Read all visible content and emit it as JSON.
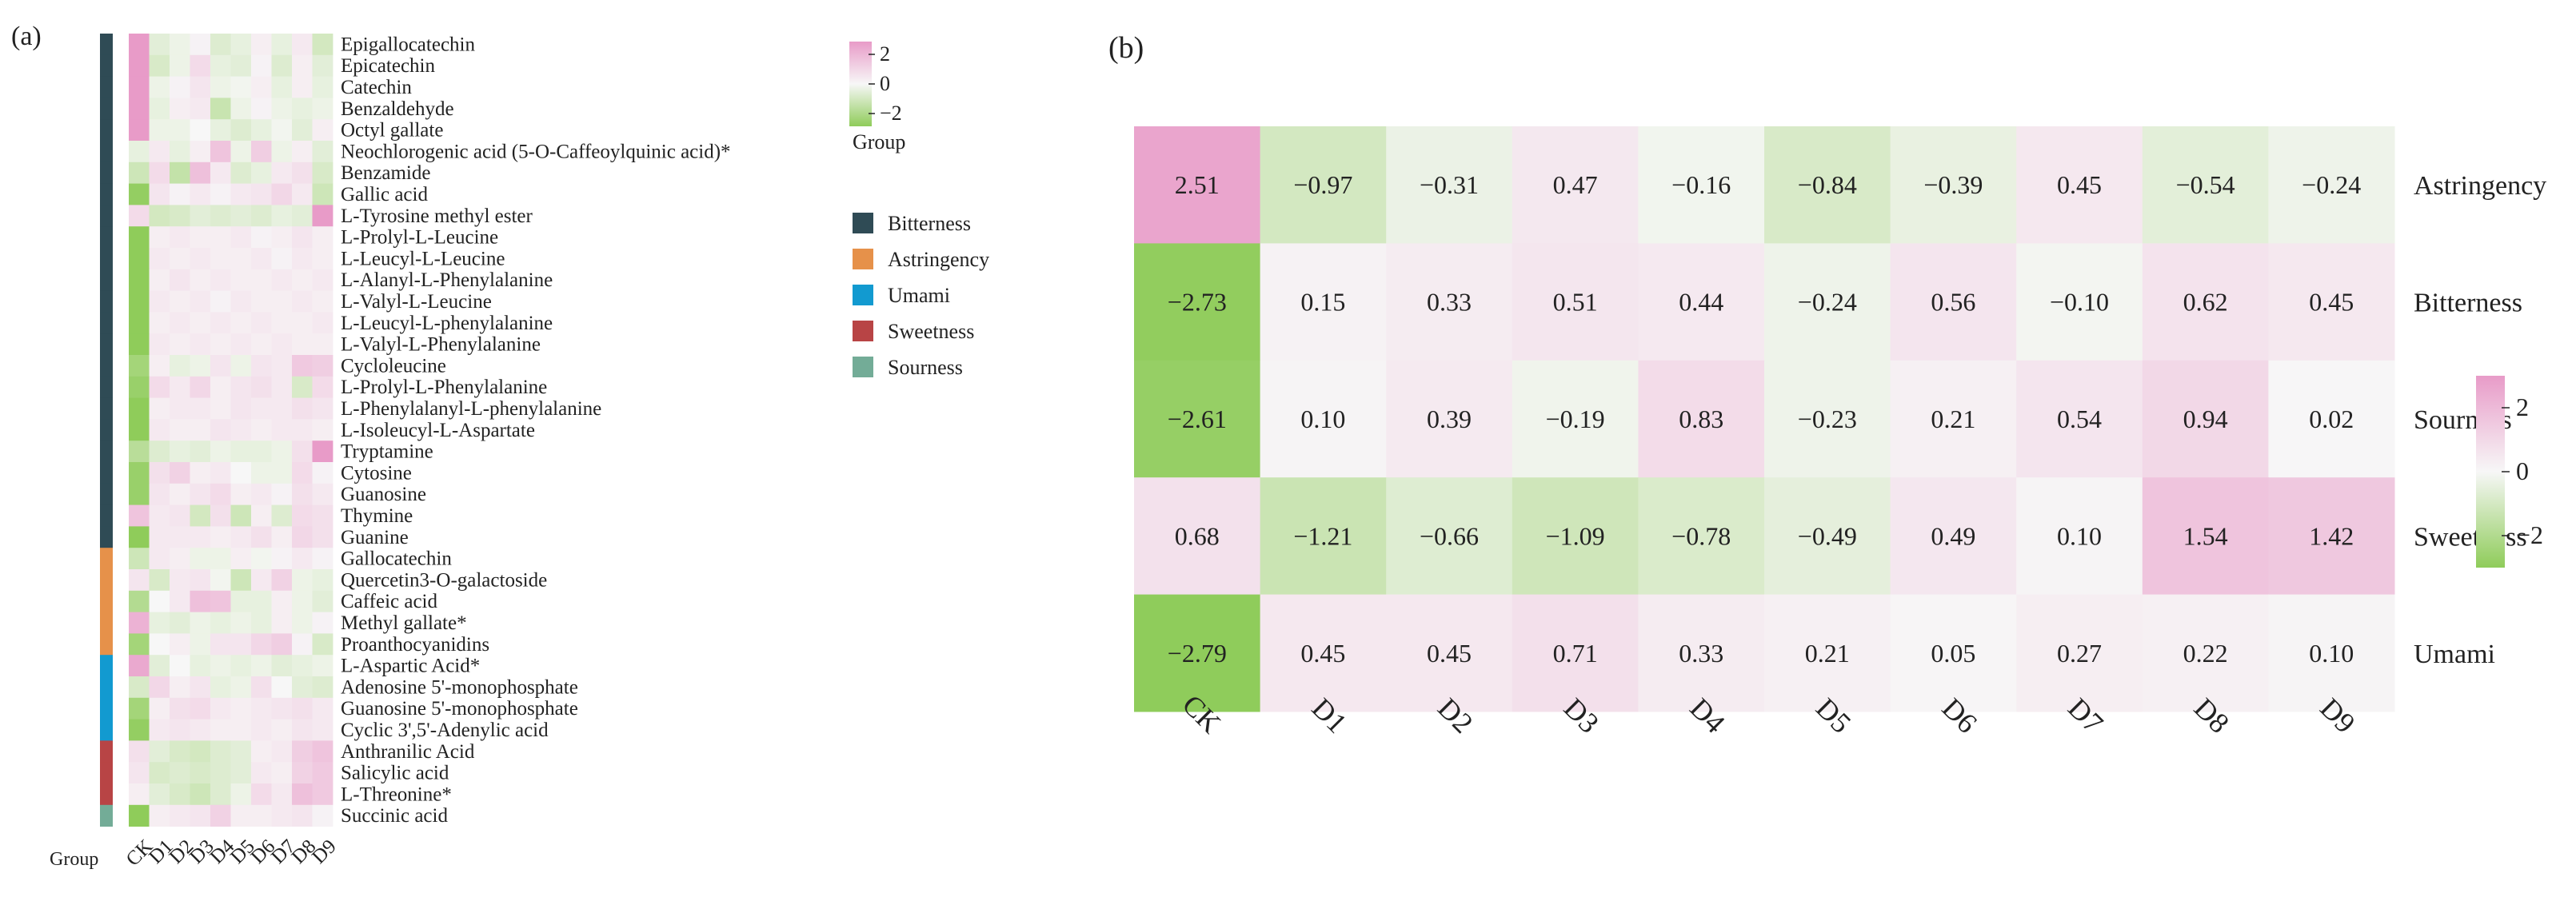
{
  "panel_a": {
    "label": "(a)",
    "legend_title": "Group",
    "colorbar_ticks": [
      "2",
      "0",
      "−2"
    ],
    "group_axis_label": "Group"
  },
  "panel_b": {
    "label": "(b)",
    "colorbar_ticks": [
      "2",
      "0",
      "−2"
    ]
  },
  "colors": {
    "low": "#8fcc5a",
    "mid": "#f7f7f7",
    "high": "#e89bc8",
    "group_colors": {
      "Bitterness": "#2f4b55",
      "Astringency": "#e6914a",
      "Umami": "#129ad0",
      "Sweetness": "#b84445",
      "Sourness": "#73ac97"
    }
  },
  "chart_data": [
    {
      "type": "heatmap",
      "panel": "(a)",
      "columns": [
        "CK",
        "D1",
        "D2",
        "D3",
        "D4",
        "D5",
        "D6",
        "D7",
        "D8",
        "D9"
      ],
      "rows": [
        "Epigallocatechin",
        "Epicatechin",
        "Catechin",
        "Benzaldehyde",
        "Octyl gallate",
        "Neochlorogenic acid (5-O-Caffeoylquinic acid)*",
        "Benzamide",
        "Gallic acid",
        "L-Tyrosine methyl ester",
        "L-Prolyl-L-Leucine",
        "L-Leucyl-L-Leucine",
        "L-Alanyl-L-Phenylalanine",
        "L-Valyl-L-Leucine",
        "L-Leucyl-L-phenylalanine",
        "L-Valyl-L-Phenylalanine",
        "Cycloleucine",
        "L-Prolyl-L-Phenylalanine",
        "L-Phenylalanyl-L-phenylalanine",
        "L-Isoleucyl-L-Aspartate",
        "Tryptamine",
        "Cytosine",
        "Guanosine",
        "Thymine",
        "Guanine",
        "Gallocatechin",
        "Quercetin3-O-galactoside",
        "Caffeic acid",
        "Methyl gallate*",
        "Proanthocyanidins",
        "L-Aspartic Acid*",
        "Adenosine 5'-monophosphate",
        "Guanosine 5'-monophosphate",
        "Cyclic 3',5'-Adenylic acid",
        "Anthranilic Acid",
        "Salicylic acid",
        "L-Threonine*",
        "Succinic acid"
      ],
      "row_groups": [
        "Bitterness",
        "Bitterness",
        "Bitterness",
        "Bitterness",
        "Bitterness",
        "Bitterness",
        "Bitterness",
        "Bitterness",
        "Bitterness",
        "Bitterness",
        "Bitterness",
        "Bitterness",
        "Bitterness",
        "Bitterness",
        "Bitterness",
        "Bitterness",
        "Bitterness",
        "Bitterness",
        "Bitterness",
        "Bitterness",
        "Bitterness",
        "Bitterness",
        "Bitterness",
        "Bitterness",
        "Astringency",
        "Astringency",
        "Astringency",
        "Astringency",
        "Astringency",
        "Umami",
        "Umami",
        "Umami",
        "Umami",
        "Sweetness",
        "Sweetness",
        "Sweetness",
        "Sourness"
      ],
      "values": [
        [
          2.2,
          -0.4,
          -0.2,
          0.1,
          -0.5,
          -0.3,
          0.2,
          -0.3,
          0.3,
          -0.7
        ],
        [
          2.0,
          -0.6,
          -0.2,
          0.6,
          -0.3,
          -0.4,
          0.1,
          -0.5,
          0.2,
          -0.4
        ],
        [
          2.1,
          -0.2,
          0.1,
          0.4,
          -0.2,
          -0.1,
          0.2,
          -0.3,
          0.2,
          -0.3
        ],
        [
          2.2,
          -0.3,
          0.2,
          0.3,
          -0.9,
          -0.2,
          0.1,
          -0.2,
          -0.3,
          -0.2
        ],
        [
          2.0,
          -0.2,
          -0.2,
          0.0,
          -0.3,
          -0.5,
          -0.3,
          -0.1,
          -0.4,
          0.2
        ],
        [
          -0.3,
          0.3,
          -0.3,
          0.2,
          1.1,
          -0.2,
          0.9,
          -0.2,
          0.2,
          -0.4
        ],
        [
          -0.8,
          0.6,
          -1.0,
          1.2,
          0.3,
          -0.5,
          -0.3,
          0.3,
          0.5,
          -0.6
        ],
        [
          -1.9,
          0.4,
          0.1,
          0.3,
          0.1,
          0.3,
          0.4,
          0.7,
          0.3,
          -0.8
        ],
        [
          0.6,
          -0.7,
          -0.6,
          -0.4,
          -0.5,
          -0.4,
          -0.5,
          -0.3,
          -0.4,
          2.1
        ],
        [
          -2.1,
          0.2,
          0.3,
          0.2,
          0.2,
          0.3,
          0.1,
          0.2,
          0.4,
          0.2
        ],
        [
          -2.1,
          0.3,
          0.2,
          0.3,
          0.2,
          0.2,
          0.3,
          0.1,
          0.3,
          0.2
        ],
        [
          -2.1,
          0.2,
          0.4,
          0.2,
          0.3,
          0.2,
          0.2,
          0.3,
          0.2,
          0.3
        ],
        [
          -2.1,
          0.3,
          0.2,
          0.3,
          0.1,
          0.3,
          0.2,
          0.2,
          0.3,
          0.2
        ],
        [
          -2.1,
          0.2,
          0.3,
          0.2,
          0.3,
          0.2,
          0.3,
          0.2,
          0.2,
          0.3
        ],
        [
          -2.1,
          0.3,
          0.2,
          0.3,
          0.2,
          0.3,
          0.2,
          0.3,
          0.2,
          0.2
        ],
        [
          -1.6,
          0.2,
          -0.3,
          -0.2,
          0.4,
          -0.2,
          0.4,
          0.3,
          1.0,
          0.9
        ],
        [
          -1.8,
          0.6,
          0.3,
          0.7,
          0.2,
          0.4,
          0.5,
          0.3,
          -0.6,
          0.6
        ],
        [
          -2.0,
          0.2,
          0.3,
          0.3,
          0.2,
          0.4,
          0.3,
          0.3,
          0.5,
          0.4
        ],
        [
          -2.0,
          0.3,
          0.2,
          0.2,
          0.4,
          0.3,
          0.2,
          0.3,
          0.3,
          0.2
        ],
        [
          -1.2,
          -0.5,
          -0.3,
          -0.4,
          -0.2,
          -0.3,
          -0.3,
          -0.2,
          0.5,
          2.7
        ],
        [
          -1.8,
          0.5,
          0.8,
          0.2,
          0.3,
          0.0,
          -0.2,
          -0.2,
          0.6,
          0.1
        ],
        [
          -1.8,
          0.4,
          0.2,
          0.4,
          0.6,
          0.2,
          0.3,
          0.1,
          0.5,
          0.3
        ],
        [
          1.1,
          0.3,
          0.4,
          -0.7,
          0.5,
          -0.8,
          0.2,
          -0.5,
          0.6,
          0.5
        ],
        [
          -2.1,
          0.3,
          0.3,
          0.3,
          0.2,
          0.3,
          0.5,
          0.2,
          0.7,
          0.5
        ],
        [
          -0.8,
          0.3,
          0.2,
          -0.2,
          -0.2,
          0.2,
          -0.1,
          0.1,
          0.3,
          0.1
        ],
        [
          0.4,
          -0.6,
          0.3,
          0.4,
          -0.1,
          -0.8,
          0.3,
          0.8,
          -0.2,
          -0.3
        ],
        [
          -1.3,
          0.0,
          0.3,
          1.2,
          1.1,
          -0.3,
          -0.3,
          0.2,
          -0.2,
          -0.4
        ],
        [
          1.5,
          -0.3,
          -0.4,
          -0.2,
          -0.3,
          -0.2,
          -0.3,
          0.2,
          -0.2,
          0.1
        ],
        [
          -1.6,
          0.0,
          0.2,
          -0.2,
          0.4,
          0.4,
          0.7,
          0.9,
          0.1,
          -0.6
        ],
        [
          1.7,
          -0.4,
          0.0,
          -0.3,
          -0.2,
          -0.3,
          -0.2,
          -0.4,
          -0.3,
          -0.2
        ],
        [
          -0.6,
          0.7,
          0.2,
          0.4,
          -0.3,
          -0.2,
          0.5,
          0.0,
          -0.4,
          -0.5
        ],
        [
          -1.6,
          0.2,
          0.5,
          0.6,
          0.3,
          0.2,
          0.3,
          0.4,
          0.5,
          0.3
        ],
        [
          -1.9,
          0.3,
          0.4,
          0.3,
          0.2,
          0.2,
          0.3,
          0.2,
          0.4,
          0.3
        ],
        [
          0.5,
          -0.4,
          -0.6,
          -0.7,
          -0.5,
          -0.4,
          0.2,
          0.3,
          0.9,
          1.1
        ],
        [
          0.4,
          -0.6,
          -0.5,
          -0.6,
          -0.5,
          -0.4,
          0.3,
          0.2,
          0.8,
          1.0
        ],
        [
          0.2,
          -0.4,
          -0.6,
          -0.8,
          -0.5,
          -0.2,
          0.6,
          0.3,
          1.2,
          1.0
        ],
        [
          -2.0,
          0.2,
          0.3,
          0.4,
          0.8,
          0.2,
          0.2,
          0.3,
          0.4,
          0.1
        ]
      ],
      "colorbar": {
        "min": -2,
        "max": 2,
        "ticks": [
          2,
          0,
          -2
        ]
      },
      "legend_title": "Group",
      "legend": [
        "Bitterness",
        "Astringency",
        "Umami",
        "Sweetness",
        "Sourness"
      ]
    },
    {
      "type": "heatmap",
      "panel": "(b)",
      "columns": [
        "CK",
        "D1",
        "D2",
        "D3",
        "D4",
        "D5",
        "D6",
        "D7",
        "D8",
        "D9"
      ],
      "rows": [
        "Astringency",
        "Bitterness",
        "Sourness",
        "Sweetness",
        "Umami"
      ],
      "values": [
        [
          2.51,
          -0.97,
          -0.31,
          0.47,
          -0.16,
          -0.84,
          -0.39,
          0.45,
          -0.54,
          -0.24
        ],
        [
          -2.73,
          0.15,
          0.33,
          0.51,
          0.44,
          -0.24,
          0.56,
          -0.1,
          0.62,
          0.45
        ],
        [
          -2.61,
          0.1,
          0.39,
          -0.19,
          0.83,
          -0.23,
          0.21,
          0.54,
          0.94,
          0.02
        ],
        [
          0.68,
          -1.21,
          -0.66,
          -1.09,
          -0.78,
          -0.49,
          0.49,
          0.1,
          1.54,
          1.42
        ],
        [
          -2.79,
          0.45,
          0.45,
          0.71,
          0.33,
          0.21,
          0.05,
          0.27,
          0.22,
          0.1
        ]
      ],
      "colorbar": {
        "min": -2.8,
        "max": 2.8,
        "ticks": [
          2,
          0,
          -2
        ]
      }
    }
  ]
}
